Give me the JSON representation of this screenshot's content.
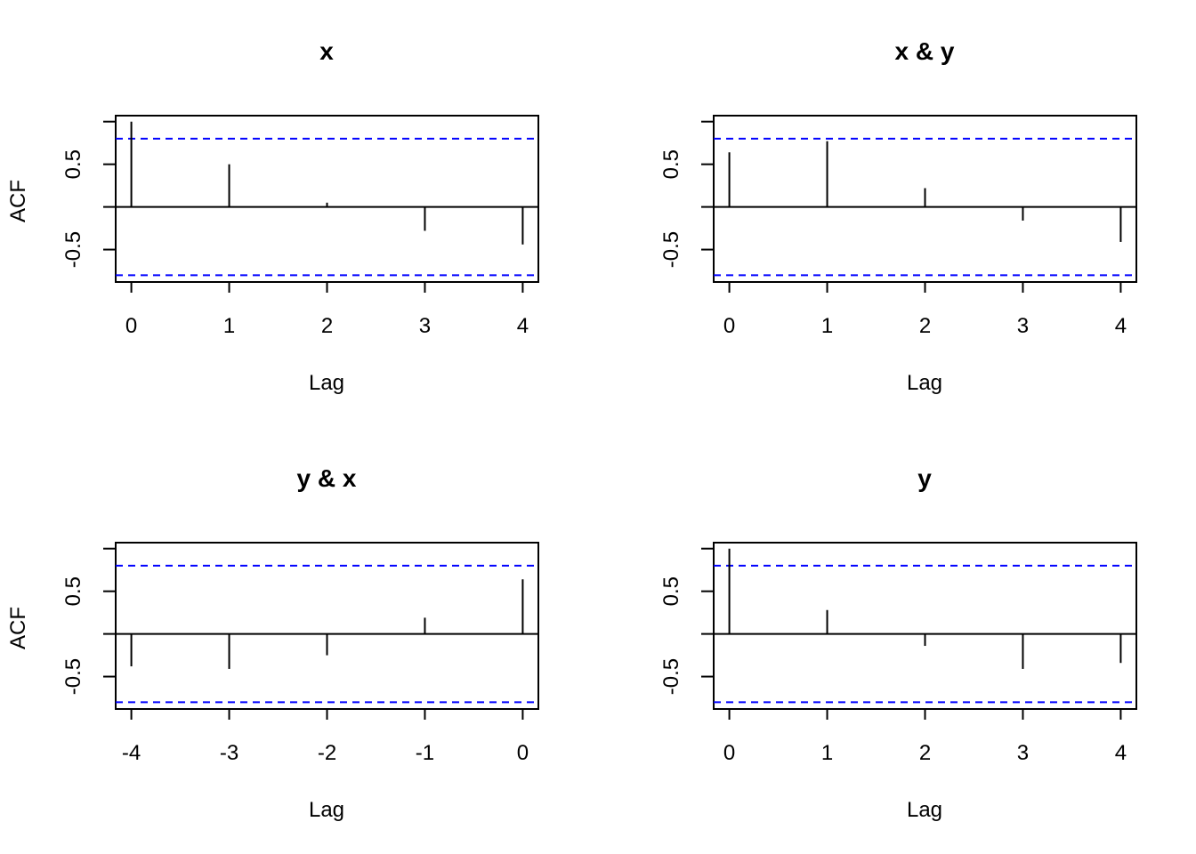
{
  "chart_data": [
    {
      "type": "bar",
      "title": "x",
      "xlabel": "Lag",
      "ylabel": "ACF",
      "x": [
        0,
        1,
        2,
        3,
        4
      ],
      "values": [
        1.0,
        0.5,
        0.05,
        -0.28,
        -0.44
      ],
      "ci": [
        0.8,
        -0.8
      ],
      "xticks": [
        "0",
        "1",
        "2",
        "3",
        "4"
      ],
      "yticks": [
        "-0.5",
        "0.5"
      ],
      "ylim": [
        -0.88,
        1.07
      ],
      "xlim": [
        -0.16,
        4.16
      ]
    },
    {
      "type": "bar",
      "title": "x & y",
      "xlabel": "Lag",
      "ylabel": "",
      "x": [
        0,
        1,
        2,
        3,
        4
      ],
      "values": [
        0.64,
        0.77,
        0.22,
        -0.16,
        -0.41
      ],
      "ci": [
        0.8,
        -0.8
      ],
      "xticks": [
        "0",
        "1",
        "2",
        "3",
        "4"
      ],
      "yticks": [
        "-0.5",
        "0.5"
      ],
      "ylim": [
        -0.88,
        1.07
      ],
      "xlim": [
        -0.16,
        4.16
      ]
    },
    {
      "type": "bar",
      "title": "y & x",
      "xlabel": "Lag",
      "ylabel": "ACF",
      "x": [
        -4,
        -3,
        -2,
        -1,
        0
      ],
      "values": [
        -0.38,
        -0.41,
        -0.25,
        0.19,
        0.64
      ],
      "ci": [
        0.8,
        -0.8
      ],
      "xticks": [
        "-4",
        "-3",
        "-2",
        "-1",
        "0"
      ],
      "yticks": [
        "-0.5",
        "0.5"
      ],
      "ylim": [
        -0.88,
        1.07
      ],
      "xlim": [
        -4.16,
        0.16
      ]
    },
    {
      "type": "bar",
      "title": "y",
      "xlabel": "Lag",
      "ylabel": "",
      "x": [
        0,
        1,
        2,
        3,
        4
      ],
      "values": [
        1.0,
        0.28,
        -0.14,
        -0.41,
        -0.34
      ],
      "ci": [
        0.8,
        -0.8
      ],
      "xticks": [
        "0",
        "1",
        "2",
        "3",
        "4"
      ],
      "yticks": [
        "-0.5",
        "0.5"
      ],
      "ylim": [
        -0.88,
        1.07
      ],
      "xlim": [
        -0.16,
        4.16
      ]
    }
  ],
  "colors": {
    "ci_line": "#0000ff",
    "bar": "#000000",
    "frame": "#000000"
  }
}
